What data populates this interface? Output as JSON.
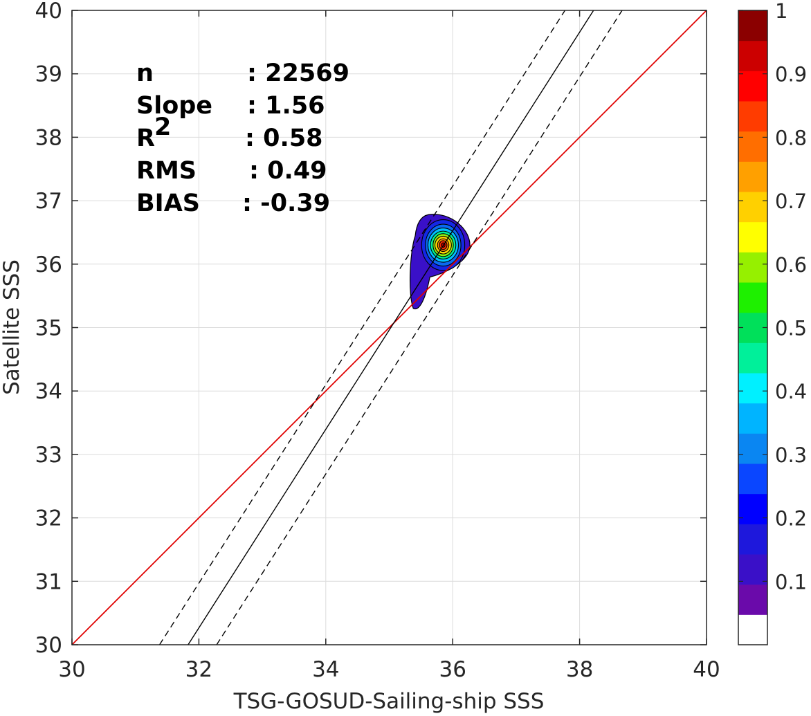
{
  "chart_data": {
    "type": "contour",
    "xlabel": "TSG-GOSUD-Sailing-ship SSS",
    "ylabel": "Satellite SSS",
    "xlim": [
      30,
      40
    ],
    "ylim": [
      30,
      40
    ],
    "x_ticks": [
      "30",
      "32",
      "34",
      "36",
      "38",
      "40"
    ],
    "y_ticks": [
      "30",
      "31",
      "32",
      "33",
      "34",
      "35",
      "36",
      "37",
      "38",
      "39",
      "40"
    ],
    "grid": true,
    "stats": [
      {
        "label": "n",
        "value": ": 22569"
      },
      {
        "label": "Slope",
        "value": ": 1.56"
      },
      {
        "label": "R",
        "sup": "2",
        "value": ": 0.58"
      },
      {
        "label": "RMS",
        "value": ": 0.49"
      },
      {
        "label": "BIAS",
        "value": ": -0.39"
      }
    ],
    "lines": [
      {
        "role": "one-to-one",
        "color": "#e00000",
        "style": "solid",
        "p1": [
          30,
          30
        ],
        "p2": [
          40,
          40
        ]
      },
      {
        "role": "regression",
        "color": "#000000",
        "style": "solid",
        "p1": [
          31.83,
          30
        ],
        "p2": [
          38.22,
          40
        ]
      },
      {
        "role": "regression-minus",
        "color": "#000000",
        "style": "dashed",
        "p1": [
          31.38,
          30
        ],
        "p2": [
          37.77,
          40
        ]
      },
      {
        "role": "regression-plus",
        "color": "#000000",
        "style": "dashed",
        "p1": [
          32.28,
          30
        ],
        "p2": [
          38.67,
          40
        ]
      }
    ],
    "density_peak": {
      "x": 35.85,
      "y": 36.3,
      "value": 1.0
    },
    "contour_levels": [
      {
        "level": 0.05,
        "color": "#3a10c8",
        "rx": 0.42,
        "ry": 0.48
      },
      {
        "level": 0.15,
        "color": "#1428e6",
        "rx": 0.34,
        "ry": 0.4
      },
      {
        "level": 0.25,
        "color": "#0a6af2",
        "rx": 0.28,
        "ry": 0.33
      },
      {
        "level": 0.35,
        "color": "#00c0ff",
        "rx": 0.24,
        "ry": 0.27
      },
      {
        "level": 0.45,
        "color": "#00f090",
        "rx": 0.2,
        "ry": 0.22
      },
      {
        "level": 0.55,
        "color": "#90f010",
        "rx": 0.16,
        "ry": 0.18
      },
      {
        "level": 0.65,
        "color": "#ffd800",
        "rx": 0.13,
        "ry": 0.14
      },
      {
        "level": 0.75,
        "color": "#ff8c00",
        "rx": 0.09,
        "ry": 0.1
      },
      {
        "level": 0.85,
        "color": "#ff2a00",
        "rx": 0.06,
        "ry": 0.07
      },
      {
        "level": 0.95,
        "color": "#b40000",
        "rx": 0.03,
        "ry": 0.035
      }
    ],
    "colorbar": {
      "min": 0,
      "max": 1,
      "ticks": [
        "0.1",
        "0.2",
        "0.3",
        "0.4",
        "0.5",
        "0.6",
        "0.7",
        "0.8",
        "0.9",
        "1"
      ],
      "colors": [
        "#ffffff",
        "#6a0aaa",
        "#3a10c8",
        "#1e18dc",
        "#0000ff",
        "#0a46ff",
        "#0a86f2",
        "#00b4ff",
        "#00f0ff",
        "#00f09a",
        "#00e05a",
        "#1ef000",
        "#96f000",
        "#ffff00",
        "#ffd000",
        "#ffa000",
        "#ff6e00",
        "#ff3c00",
        "#ff0000",
        "#cc0000",
        "#8b0000"
      ]
    }
  }
}
